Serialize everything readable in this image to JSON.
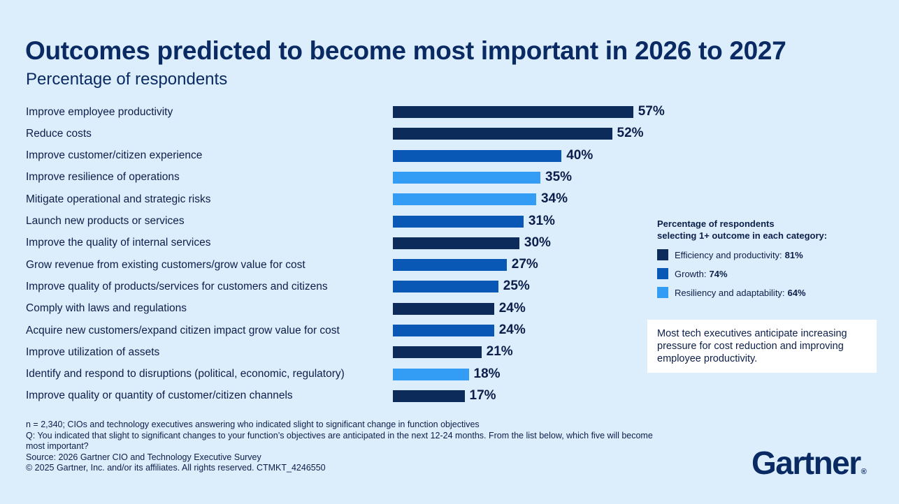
{
  "title": "Outcomes predicted to become most important in 2026 to 2027",
  "subtitle": "Percentage of respondents",
  "colors": {
    "efficiency": "#0c2b5b",
    "growth": "#0a58b5",
    "resiliency": "#339cf5"
  },
  "chart_data": {
    "type": "bar",
    "orientation": "horizontal",
    "title": "Outcomes predicted to become most important in 2026 to 2027",
    "subtitle": "Percentage of respondents",
    "xlim": [
      0,
      100
    ],
    "grid": false,
    "legend_placement": "right",
    "categories": [
      "Improve employee productivity",
      "Reduce costs",
      "Improve customer/citizen experience",
      "Improve resilience of operations",
      "Mitigate operational and strategic risks",
      "Launch new products or services",
      "Improve the quality of internal services",
      "Grow revenue from existing customers/grow value for cost",
      "Improve quality of products/services for customers and citizens",
      "Comply with laws and regulations",
      "Acquire new customers/expand citizen impact grow value for cost",
      "Improve utilization of assets",
      "Identify and respond to disruptions (political, economic, regulatory)",
      "Improve quality or quantity of customer/citizen channels"
    ],
    "values": [
      57,
      52,
      40,
      35,
      34,
      31,
      30,
      27,
      25,
      24,
      24,
      21,
      18,
      17
    ],
    "value_labels": [
      "57%",
      "52%",
      "40%",
      "35%",
      "34%",
      "31%",
      "30%",
      "27%",
      "25%",
      "24%",
      "24%",
      "21%",
      "18%",
      "17%"
    ],
    "bar_groups": [
      "efficiency",
      "efficiency",
      "growth",
      "resiliency",
      "resiliency",
      "growth",
      "efficiency",
      "growth",
      "growth",
      "efficiency",
      "growth",
      "efficiency",
      "resiliency",
      "efficiency"
    ]
  },
  "legend": {
    "title_line1": "Percentage of respondents",
    "title_line2": "selecting 1+ outcome in each category:",
    "items": [
      {
        "key": "efficiency",
        "label": "Efficiency and productivity:",
        "value": "81%"
      },
      {
        "key": "growth",
        "label": "Growth:",
        "value": "74%"
      },
      {
        "key": "resiliency",
        "label": "Resiliency and adaptability:",
        "value": "64%"
      }
    ]
  },
  "callout": "Most tech executives anticipate increasing pressure for cost reduction and improving employee productivity.",
  "footnotes": {
    "n": "n = 2,340; CIOs and technology executives answering who indicated slight to significant change in function objectives",
    "q": "Q: You indicated that slight to significant changes to your function’s objectives are anticipated in the next 12-24 months. From the list below, which five will become most important?",
    "source": "Source: 2026 Gartner CIO and Technology Executive Survey",
    "copyright": "© 2025 Gartner, Inc. and/or its affiliates. All rights reserved. CTMKT_4246550"
  },
  "logo": {
    "text": "Gartner",
    "mark": "®"
  }
}
